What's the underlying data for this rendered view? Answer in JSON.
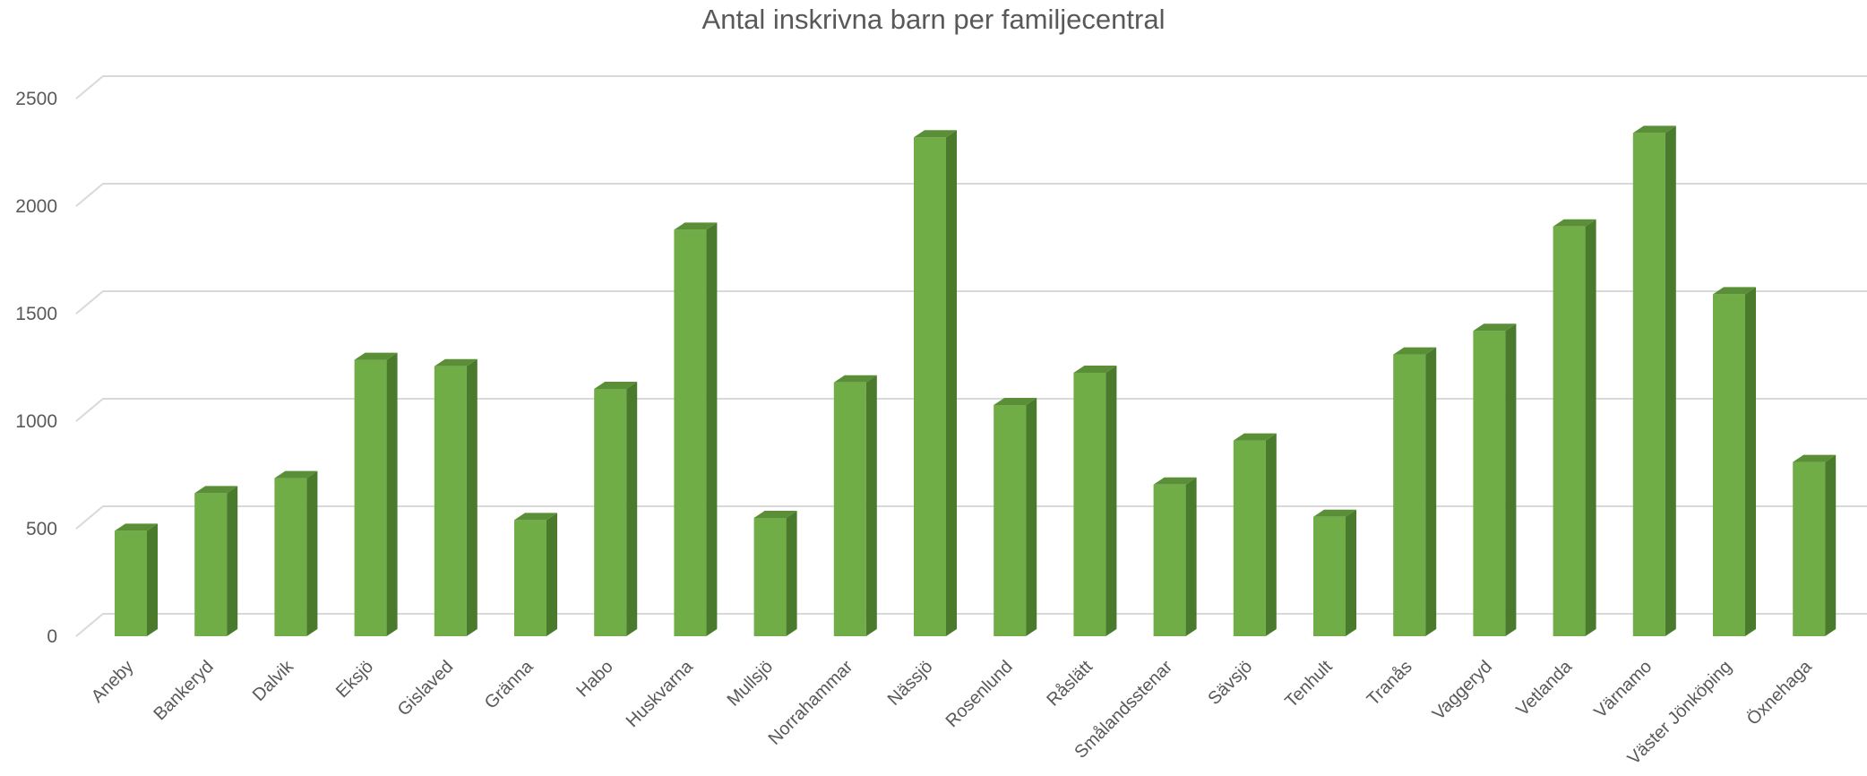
{
  "chart_data": {
    "type": "bar",
    "title": "Antal inskrivna barn per familjecentral",
    "xlabel": "",
    "ylabel": "",
    "ylim": [
      0,
      2500
    ],
    "yticks": [
      0,
      500,
      1000,
      1500,
      2000,
      2500
    ],
    "grid": true,
    "colors": {
      "front": "#70ad47",
      "side": "#4a7a2c",
      "top": "#5a8f37",
      "grid": "#d9d9d9",
      "text": "#595959"
    },
    "categories": [
      "Aneby",
      "Bankeryd",
      "Dalvik",
      "Eksjö",
      "Gislaved",
      "Gränna",
      "Habo",
      "Huskvarna",
      "Mullsjö",
      "Norrahammar",
      "Nässjö",
      "Rosenlund",
      "Råslätt",
      "Smålandsstenar",
      "Sävsjö",
      "Tenhult",
      "Tranås",
      "Vaggeryd",
      "Vetlanda",
      "Värnamo",
      "Väster Jönköping",
      "Öxnehaga"
    ],
    "values": [
      490,
      665,
      735,
      1285,
      1255,
      540,
      1150,
      1890,
      550,
      1180,
      2320,
      1075,
      1225,
      705,
      910,
      555,
      1310,
      1420,
      1905,
      2340,
      1590,
      810
    ]
  }
}
